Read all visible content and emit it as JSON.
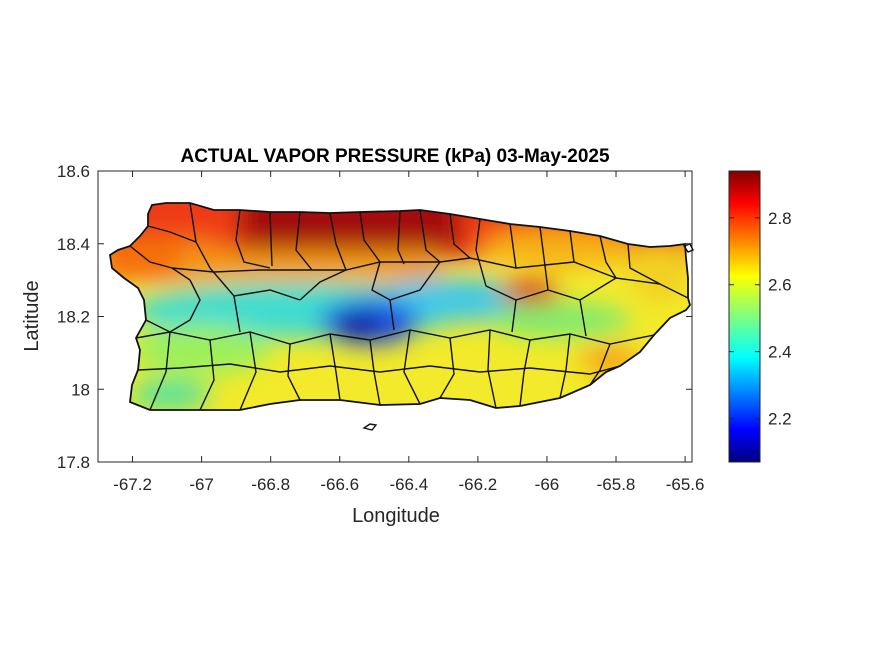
{
  "title": "ACTUAL VAPOR PRESSURE (kPa) 03-May-2025",
  "xlabel": "Longitude",
  "ylabel": "Latitude",
  "colormap": "jet",
  "map": {
    "type": "filled-contour-map",
    "region": "Puerto Rico",
    "variable": "actual vapor pressure",
    "units": "kPa",
    "date": "03-May-2025",
    "xlim": [
      -67.3,
      -65.58
    ],
    "ylim": [
      17.8,
      18.6
    ],
    "x_ticks": [
      -67.2,
      -67,
      -66.8,
      -66.6,
      -66.4,
      -66.2,
      -66,
      -65.8,
      -65.6
    ],
    "x_tick_labels": [
      "-67.2",
      "-67",
      "-66.8",
      "-66.6",
      "-66.4",
      "-66.2",
      "-66",
      "-65.8",
      "-65.6"
    ],
    "y_ticks": [
      17.8,
      18,
      18.2,
      18.4,
      18.6
    ],
    "y_tick_labels": [
      "17.8",
      "18",
      "18.2",
      "18.4",
      "18.6"
    ],
    "colorbar": {
      "range": [
        2.07,
        2.94
      ],
      "ticks": [
        2.2,
        2.4,
        2.6,
        2.8
      ],
      "tick_labels": [
        "2.2",
        "2.4",
        "2.6",
        "2.8"
      ]
    }
  }
}
